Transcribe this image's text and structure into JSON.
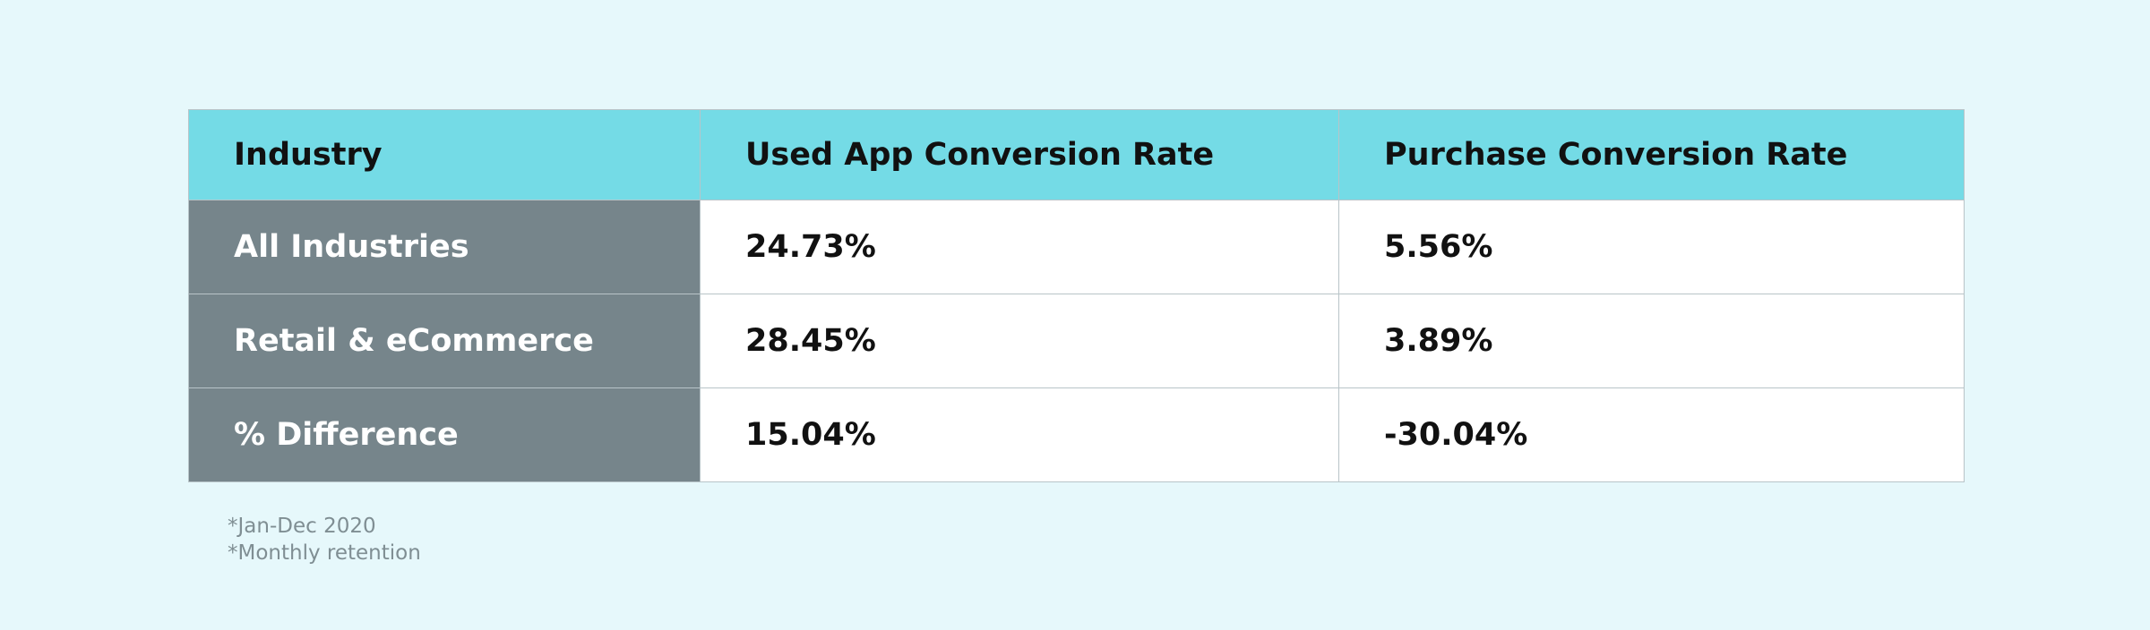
{
  "table": {
    "headers": [
      "Industry",
      "Used App Conversion Rate",
      "Purchase Conversion Rate"
    ],
    "rows": [
      [
        "All Industries",
        "24.73%",
        "5.56%"
      ],
      [
        "Retail & eCommerce",
        "28.45%",
        "3.89%"
      ],
      [
        "% Difference",
        "15.04%",
        "-30.04%"
      ]
    ]
  },
  "footnotes": [
    "*Jan-Dec 2020",
    "*Monthly retention"
  ]
}
